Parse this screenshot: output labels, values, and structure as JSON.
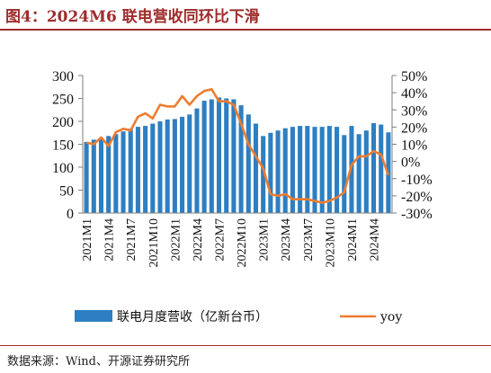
{
  "header": {
    "title": "图4：2024M6 联电营收同环比下滑"
  },
  "footer": {
    "source": "数据来源：Wind、开源证券研究所"
  },
  "chart_data": {
    "type": "bar",
    "title": "图4：2024M6 联电营收同环比下滑",
    "xlabel": "",
    "ylabel": "",
    "ylim": [
      0,
      300
    ],
    "y_ticks": [
      "0",
      "50",
      "100",
      "150",
      "200",
      "250",
      "300"
    ],
    "y2lim": [
      -30,
      50
    ],
    "y2_ticks": [
      "-30%",
      "-20%",
      "-10%",
      "0%",
      "10%",
      "20%",
      "30%",
      "40%",
      "50%"
    ],
    "grid": false,
    "legend_position": "bottom",
    "categories": [
      "2021M1",
      "2021M2",
      "2021M3",
      "2021M4",
      "2021M5",
      "2021M6",
      "2021M7",
      "2021M8",
      "2021M9",
      "2021M10",
      "2021M11",
      "2021M12",
      "2022M1",
      "2022M2",
      "2022M3",
      "2022M4",
      "2022M5",
      "2022M6",
      "2022M7",
      "2022M8",
      "2022M9",
      "2022M10",
      "2022M11",
      "2022M12",
      "2023M1",
      "2023M2",
      "2023M3",
      "2023M4",
      "2023M5",
      "2023M6",
      "2023M7",
      "2023M8",
      "2023M9",
      "2023M10",
      "2023M11",
      "2023M12",
      "2024M1",
      "2024M2",
      "2024M3",
      "2024M4",
      "2024M5",
      "2024M6"
    ],
    "x_tick_labels": [
      "2021M1",
      "2021M4",
      "2021M7",
      "2021M10",
      "2022M1",
      "2022M4",
      "2022M7",
      "2022M10",
      "2023M1",
      "2023M4",
      "2023M7",
      "2023M10",
      "2024M1",
      "2024M4"
    ],
    "series": [
      {
        "name": "联电月度营收（亿新台币）",
        "type": "bar",
        "axis": "left",
        "color": "#2e7fc1",
        "values": [
          155,
          160,
          162,
          168,
          172,
          178,
          184,
          188,
          190,
          195,
          200,
          204,
          205,
          210,
          215,
          228,
          245,
          248,
          252,
          250,
          248,
          235,
          215,
          195,
          168,
          175,
          180,
          185,
          188,
          190,
          190,
          188,
          188,
          190,
          188,
          170,
          190,
          172,
          180,
          196,
          193,
          176
        ]
      },
      {
        "name": "yoy",
        "type": "line",
        "axis": "right",
        "color": "#ed7d31",
        "values": [
          11,
          10,
          14,
          9,
          17,
          19,
          18,
          26,
          28,
          25,
          33,
          32,
          32,
          38,
          33,
          38,
          41,
          42,
          35,
          35,
          33,
          22,
          10,
          3,
          -4,
          -19,
          -20,
          -19,
          -22,
          -22,
          -22,
          -23,
          -24,
          -23,
          -21,
          -18,
          -2,
          3,
          3,
          6,
          4,
          -8
        ]
      }
    ]
  }
}
